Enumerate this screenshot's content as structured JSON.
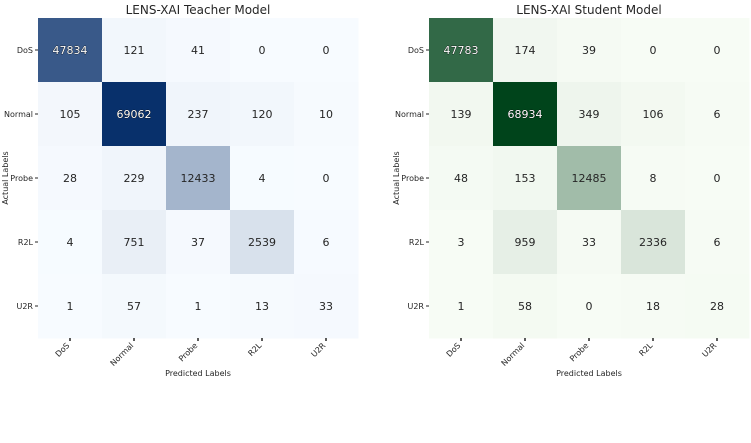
{
  "chart_data": [
    {
      "type": "heatmap",
      "title": "LENS-XAI Teacher Model",
      "xlabel": "Predicted Labels",
      "ylabel": "Actual Labels",
      "row_labels": [
        "DoS",
        "Normal",
        "Probe",
        "R2L",
        "U2R"
      ],
      "col_labels": [
        "DoS",
        "Normal",
        "Probe",
        "R2L",
        "U2R"
      ],
      "values": [
        [
          47834,
          121,
          41,
          0,
          0
        ],
        [
          105,
          69062,
          237,
          120,
          10
        ],
        [
          28,
          229,
          12433,
          4,
          0
        ],
        [
          4,
          751,
          37,
          2539,
          6
        ],
        [
          1,
          57,
          1,
          13,
          33
        ]
      ],
      "colormap": "Blues",
      "colors": {
        "low": "#f7fbff",
        "high": "#08306b"
      }
    },
    {
      "type": "heatmap",
      "title": "LENS-XAI Student Model",
      "xlabel": "Predicted Labels",
      "ylabel": "Actual Labels",
      "row_labels": [
        "DoS",
        "Normal",
        "Probe",
        "R2L",
        "U2R"
      ],
      "col_labels": [
        "DoS",
        "Normal",
        "Probe",
        "R2L",
        "U2R"
      ],
      "values": [
        [
          47783,
          174,
          39,
          0,
          0
        ],
        [
          139,
          68934,
          349,
          106,
          6
        ],
        [
          48,
          153,
          12485,
          8,
          0
        ],
        [
          3,
          959,
          33,
          2336,
          6
        ],
        [
          1,
          58,
          0,
          18,
          28
        ]
      ],
      "colormap": "Greens",
      "colors": {
        "low": "#f7fcf5",
        "high": "#00441b"
      }
    }
  ]
}
